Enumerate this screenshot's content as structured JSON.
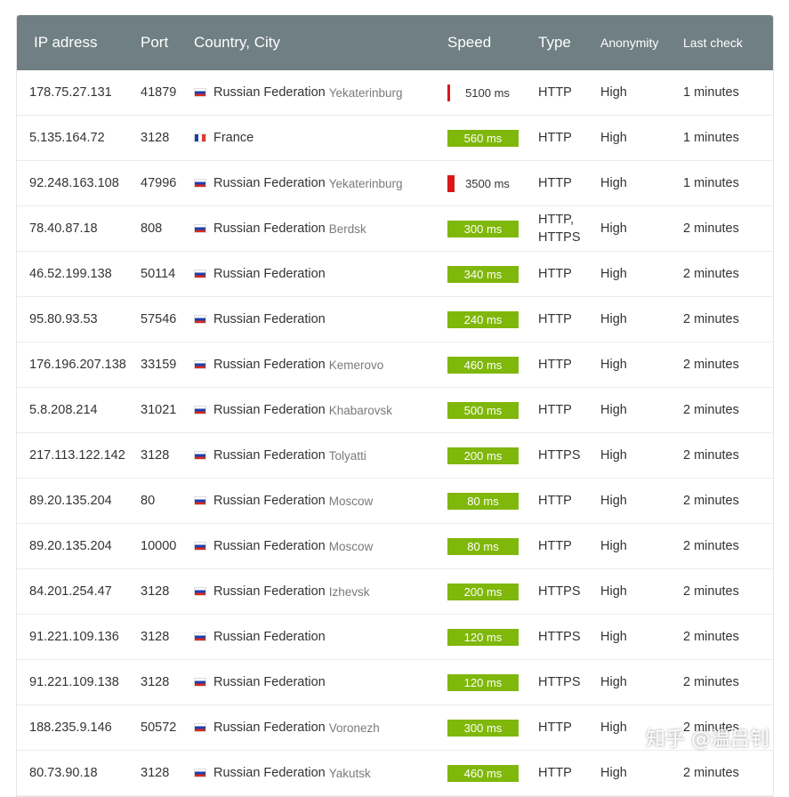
{
  "header": {
    "ip": "IP adress",
    "port": "Port",
    "country": "Country, City",
    "speed": "Speed",
    "type": "Type",
    "anonymity": "Anonymity",
    "last_check": "Last check"
  },
  "colors": {
    "header_bg": "#6f7f84",
    "speed_good": "#80b70b",
    "speed_slow": "#d9181c"
  },
  "rows": [
    {
      "ip": "178.75.27.131",
      "port": "41879",
      "flag": "ru",
      "country": "Russian Federation",
      "city": "Yekaterinburg",
      "speed": "5100 ms",
      "speed_fraction": 0.04,
      "speed_color": "#d9181c",
      "type": "HTTP",
      "anonymity": "High",
      "last": "1 minutes"
    },
    {
      "ip": "5.135.164.72",
      "port": "3128",
      "flag": "fr",
      "country": "France",
      "city": "",
      "speed": "560 ms",
      "speed_fraction": 0.93,
      "speed_color": "#80b70b",
      "type": "HTTP",
      "anonymity": "High",
      "last": "1 minutes"
    },
    {
      "ip": "92.248.163.108",
      "port": "47996",
      "flag": "ru",
      "country": "Russian Federation",
      "city": "Yekaterinburg",
      "speed": "3500 ms",
      "speed_fraction": 0.1,
      "speed_color": "#d9181c",
      "type": "HTTP",
      "anonymity": "High",
      "last": "1 minutes"
    },
    {
      "ip": "78.40.87.18",
      "port": "808",
      "flag": "ru",
      "country": "Russian Federation",
      "city": "Berdsk",
      "speed": "300 ms",
      "speed_fraction": 1,
      "speed_color": "#80b70b",
      "type": "HTTP,\nHTTPS",
      "anonymity": "High",
      "last": "2 minutes"
    },
    {
      "ip": "46.52.199.138",
      "port": "50114",
      "flag": "ru",
      "country": "Russian Federation",
      "city": "",
      "speed": "340 ms",
      "speed_fraction": 1,
      "speed_color": "#80b70b",
      "type": "HTTP",
      "anonymity": "High",
      "last": "2 minutes"
    },
    {
      "ip": "95.80.93.53",
      "port": "57546",
      "flag": "ru",
      "country": "Russian Federation",
      "city": "",
      "speed": "240 ms",
      "speed_fraction": 1,
      "speed_color": "#80b70b",
      "type": "HTTP",
      "anonymity": "High",
      "last": "2 minutes"
    },
    {
      "ip": "176.196.207.138",
      "port": "33159",
      "flag": "ru",
      "country": "Russian Federation",
      "city": "Kemerovo",
      "speed": "460 ms",
      "speed_fraction": 1,
      "speed_color": "#80b70b",
      "type": "HTTP",
      "anonymity": "High",
      "last": "2 minutes"
    },
    {
      "ip": "5.8.208.214",
      "port": "31021",
      "flag": "ru",
      "country": "Russian Federation",
      "city": "Khabarovsk",
      "speed": "500 ms",
      "speed_fraction": 1,
      "speed_color": "#80b70b",
      "type": "HTTP",
      "anonymity": "High",
      "last": "2 minutes"
    },
    {
      "ip": "217.113.122.142",
      "port": "3128",
      "flag": "ru",
      "country": "Russian Federation",
      "city": "Tolyatti",
      "speed": "200 ms",
      "speed_fraction": 1,
      "speed_color": "#80b70b",
      "type": "HTTPS",
      "anonymity": "High",
      "last": "2 minutes"
    },
    {
      "ip": "89.20.135.204",
      "port": "80",
      "flag": "ru",
      "country": "Russian Federation",
      "city": "Moscow",
      "speed": "80 ms",
      "speed_fraction": 1,
      "speed_color": "#80b70b",
      "type": "HTTP",
      "anonymity": "High",
      "last": "2 minutes"
    },
    {
      "ip": "89.20.135.204",
      "port": "10000",
      "flag": "ru",
      "country": "Russian Federation",
      "city": "Moscow",
      "speed": "80 ms",
      "speed_fraction": 1,
      "speed_color": "#80b70b",
      "type": "HTTP",
      "anonymity": "High",
      "last": "2 minutes"
    },
    {
      "ip": "84.201.254.47",
      "port": "3128",
      "flag": "ru",
      "country": "Russian Federation",
      "city": "Izhevsk",
      "speed": "200 ms",
      "speed_fraction": 1,
      "speed_color": "#80b70b",
      "type": "HTTPS",
      "anonymity": "High",
      "last": "2 minutes"
    },
    {
      "ip": "91.221.109.136",
      "port": "3128",
      "flag": "ru",
      "country": "Russian Federation",
      "city": "",
      "speed": "120 ms",
      "speed_fraction": 1,
      "speed_color": "#80b70b",
      "type": "HTTPS",
      "anonymity": "High",
      "last": "2 minutes"
    },
    {
      "ip": "91.221.109.138",
      "port": "3128",
      "flag": "ru",
      "country": "Russian Federation",
      "city": "",
      "speed": "120 ms",
      "speed_fraction": 1,
      "speed_color": "#80b70b",
      "type": "HTTPS",
      "anonymity": "High",
      "last": "2 minutes"
    },
    {
      "ip": "188.235.9.146",
      "port": "50572",
      "flag": "ru",
      "country": "Russian Federation",
      "city": "Voronezh",
      "speed": "300 ms",
      "speed_fraction": 1,
      "speed_color": "#80b70b",
      "type": "HTTP",
      "anonymity": "High",
      "last": "2 minutes"
    },
    {
      "ip": "80.73.90.18",
      "port": "3128",
      "flag": "ru",
      "country": "Russian Federation",
      "city": "Yakutsk",
      "speed": "460 ms",
      "speed_fraction": 1,
      "speed_color": "#80b70b",
      "type": "HTTP",
      "anonymity": "High",
      "last": "2 minutes"
    }
  ],
  "watermark": "知乎 @温吕钊"
}
